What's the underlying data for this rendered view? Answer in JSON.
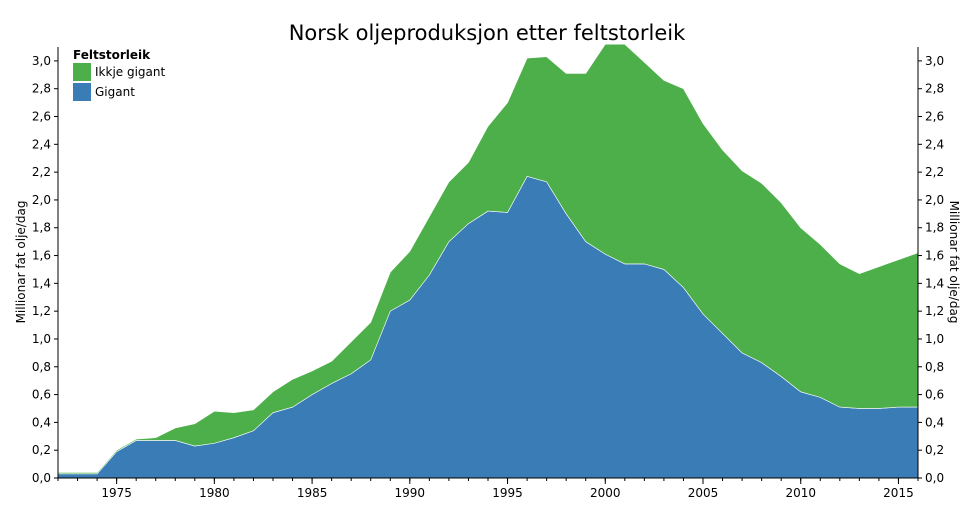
{
  "chart_data": {
    "type": "area",
    "stacked": true,
    "title": "Norsk oljeproduksjon etter feltstorleik",
    "ylabel_left": "Millionar fat olje/dag",
    "ylabel_right": "Millionar fat olje/dag",
    "xlabel": "",
    "xlim": [
      1972,
      2016
    ],
    "ylim": [
      0,
      3.1
    ],
    "x_ticks": [
      "1975",
      "1980",
      "1985",
      "1990",
      "1995",
      "2000",
      "2005",
      "2010",
      "2015"
    ],
    "y_ticks": [
      "0,0",
      "0,2",
      "0,4",
      "0,6",
      "0,8",
      "1,0",
      "1,2",
      "1,4",
      "1,6",
      "1,8",
      "2,0",
      "2,2",
      "2,4",
      "2,6",
      "2,8",
      "3,0"
    ],
    "legend": {
      "title": "Feltstorleik",
      "position": "top-left",
      "entries": [
        "Ikkje gigant",
        "Gigant"
      ]
    },
    "colors": {
      "Gigant": "#3a7db6",
      "Ikkje gigant": "#4daf4a"
    },
    "x": [
      1972,
      1973,
      1974,
      1975,
      1976,
      1977,
      1978,
      1979,
      1980,
      1981,
      1982,
      1983,
      1984,
      1985,
      1986,
      1987,
      1988,
      1989,
      1990,
      1991,
      1992,
      1993,
      1994,
      1995,
      1996,
      1997,
      1998,
      1999,
      2000,
      2001,
      2002,
      2003,
      2004,
      2005,
      2006,
      2007,
      2008,
      2009,
      2010,
      2011,
      2012,
      2013,
      2014,
      2015,
      2016
    ],
    "series": [
      {
        "name": "Gigant",
        "values": [
          0.03,
          0.03,
          0.03,
          0.19,
          0.27,
          0.27,
          0.27,
          0.23,
          0.25,
          0.29,
          0.34,
          0.47,
          0.51,
          0.6,
          0.68,
          0.75,
          0.85,
          1.2,
          1.28,
          1.46,
          1.7,
          1.83,
          1.92,
          1.91,
          2.17,
          2.13,
          1.9,
          1.7,
          1.61,
          1.54,
          1.54,
          1.5,
          1.37,
          1.18,
          1.04,
          0.9,
          0.83,
          0.73,
          0.62,
          0.58,
          0.51,
          0.5,
          0.5,
          0.51,
          0.51
        ]
      },
      {
        "name": "Ikkje gigant",
        "values": [
          0.01,
          0.01,
          0.01,
          0.01,
          0.01,
          0.02,
          0.09,
          0.16,
          0.23,
          0.18,
          0.15,
          0.15,
          0.2,
          0.17,
          0.16,
          0.23,
          0.27,
          0.28,
          0.35,
          0.42,
          0.43,
          0.44,
          0.61,
          0.79,
          0.85,
          0.9,
          1.01,
          1.21,
          1.51,
          1.58,
          1.45,
          1.36,
          1.43,
          1.37,
          1.32,
          1.31,
          1.29,
          1.25,
          1.18,
          1.1,
          1.03,
          0.97,
          1.02,
          1.06,
          1.11
        ]
      }
    ]
  }
}
